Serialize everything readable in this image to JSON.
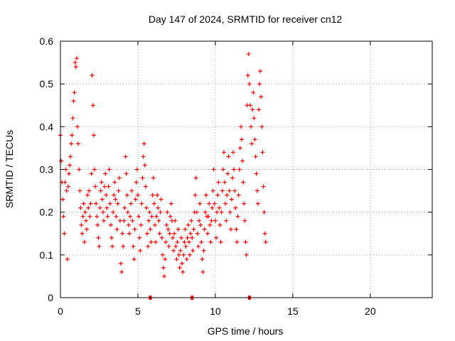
{
  "chart_data": {
    "type": "scatter",
    "title": "Day 147 of 2024, SRMTID for receiver cn12",
    "xlabel": "GPS time / hours",
    "ylabel": "SRMTID / TECUs",
    "xlim": [
      0,
      24
    ],
    "ylim": [
      0,
      0.6
    ],
    "xticks": [
      0,
      5,
      10,
      15,
      20
    ],
    "yticks": [
      0,
      0.1,
      0.2,
      0.3,
      0.4,
      0.5,
      0.6
    ],
    "ytick_labels": [
      "0",
      "0.1",
      "0.2",
      "0.3",
      "0.4",
      "0.5",
      "0.6"
    ],
    "grid": true,
    "marker": "+",
    "color": "#ff0000",
    "zero_markers_x": [
      5.8,
      8.5,
      12.2
    ],
    "series": [
      {
        "values_xy": [
          [
            0.0,
            0.38
          ],
          [
            0.05,
            0.32
          ],
          [
            0.1,
            0.27
          ],
          [
            0.15,
            0.23
          ],
          [
            0.2,
            0.19
          ],
          [
            0.25,
            0.15
          ],
          [
            0.3,
            0.27
          ],
          [
            0.35,
            0.3
          ],
          [
            0.4,
            0.25
          ],
          [
            0.45,
            0.09
          ],
          [
            0.5,
            0.26
          ],
          [
            0.55,
            0.29
          ],
          [
            0.6,
            0.31
          ],
          [
            0.65,
            0.33
          ],
          [
            0.7,
            0.36
          ],
          [
            0.75,
            0.38
          ],
          [
            0.8,
            0.42
          ],
          [
            0.85,
            0.46
          ],
          [
            0.9,
            0.48
          ],
          [
            0.95,
            0.55
          ],
          [
            1.0,
            0.54
          ],
          [
            1.05,
            0.56
          ],
          [
            1.1,
            0.4
          ],
          [
            1.15,
            0.36
          ],
          [
            1.2,
            0.3
          ],
          [
            1.25,
            0.25
          ],
          [
            1.3,
            0.21
          ],
          [
            1.35,
            0.17
          ],
          [
            1.4,
            0.15
          ],
          [
            1.45,
            0.19
          ],
          [
            1.5,
            0.22
          ],
          [
            1.55,
            0.13
          ],
          [
            1.6,
            0.2
          ],
          [
            1.65,
            0.18
          ],
          [
            1.7,
            0.16
          ],
          [
            1.75,
            0.24
          ],
          [
            1.8,
            0.21
          ],
          [
            1.85,
            0.25
          ],
          [
            1.9,
            0.19
          ],
          [
            1.95,
            0.22
          ],
          [
            2.0,
            0.29
          ],
          [
            2.05,
            0.52
          ],
          [
            2.1,
            0.45
          ],
          [
            2.15,
            0.38
          ],
          [
            2.2,
            0.3
          ],
          [
            2.25,
            0.26
          ],
          [
            2.3,
            0.22
          ],
          [
            2.35,
            0.19
          ],
          [
            2.4,
            0.17
          ],
          [
            2.45,
            0.14
          ],
          [
            2.5,
            0.12
          ],
          [
            2.55,
            0.21
          ],
          [
            2.6,
            0.25
          ],
          [
            2.65,
            0.27
          ],
          [
            2.7,
            0.23
          ],
          [
            2.75,
            0.2
          ],
          [
            2.8,
            0.18
          ],
          [
            2.85,
            0.26
          ],
          [
            2.9,
            0.29
          ],
          [
            2.95,
            0.24
          ],
          [
            3.0,
            0.21
          ],
          [
            3.05,
            0.19
          ],
          [
            3.1,
            0.26
          ],
          [
            3.15,
            0.3
          ],
          [
            3.2,
            0.22
          ],
          [
            3.25,
            0.17
          ],
          [
            3.3,
            0.14
          ],
          [
            3.35,
            0.12
          ],
          [
            3.4,
            0.2
          ],
          [
            3.45,
            0.24
          ],
          [
            3.5,
            0.27
          ],
          [
            3.55,
            0.23
          ],
          [
            3.6,
            0.19
          ],
          [
            3.65,
            0.16
          ],
          [
            3.7,
            0.22
          ],
          [
            3.75,
            0.25
          ],
          [
            3.8,
            0.28
          ],
          [
            3.85,
            0.18
          ],
          [
            3.9,
            0.08
          ],
          [
            3.95,
            0.06
          ],
          [
            4.0,
            0.15
          ],
          [
            4.05,
            0.12
          ],
          [
            4.1,
            0.18
          ],
          [
            4.15,
            0.21
          ],
          [
            4.2,
            0.33
          ],
          [
            4.25,
            0.29
          ],
          [
            4.3,
            0.24
          ],
          [
            4.35,
            0.2
          ],
          [
            4.4,
            0.17
          ],
          [
            4.45,
            0.15
          ],
          [
            4.5,
            0.19
          ],
          [
            4.55,
            0.22
          ],
          [
            4.6,
            0.25
          ],
          [
            4.65,
            0.18
          ],
          [
            4.7,
            0.12
          ],
          [
            4.75,
            0.09
          ],
          [
            4.8,
            0.16
          ],
          [
            4.85,
            0.23
          ],
          [
            4.9,
            0.27
          ],
          [
            4.95,
            0.3
          ],
          [
            5.0,
            0.24
          ],
          [
            5.05,
            0.19
          ],
          [
            5.1,
            0.14
          ],
          [
            5.15,
            0.11
          ],
          [
            5.2,
            0.17
          ],
          [
            5.25,
            0.22
          ],
          [
            5.3,
            0.28
          ],
          [
            5.35,
            0.33
          ],
          [
            5.4,
            0.36
          ],
          [
            5.45,
            0.31
          ],
          [
            5.5,
            0.26
          ],
          [
            5.55,
            0.21
          ],
          [
            5.6,
            0.15
          ],
          [
            5.65,
            0.12
          ],
          [
            5.7,
            0.18
          ],
          [
            5.75,
            0.2
          ],
          [
            5.8,
            0.16
          ],
          [
            5.85,
            0.13
          ],
          [
            5.9,
            0.19
          ],
          [
            5.95,
            0.24
          ],
          [
            6.0,
            0.28
          ],
          [
            6.05,
            0.22
          ],
          [
            6.1,
            0.17
          ],
          [
            6.15,
            0.13
          ],
          [
            6.2,
            0.19
          ],
          [
            6.25,
            0.24
          ],
          [
            6.3,
            0.21
          ],
          [
            6.35,
            0.18
          ],
          [
            6.4,
            0.15
          ],
          [
            6.45,
            0.2
          ],
          [
            6.5,
            0.23
          ],
          [
            6.55,
            0.14
          ],
          [
            6.6,
            0.1
          ],
          [
            6.65,
            0.07
          ],
          [
            6.7,
            0.05
          ],
          [
            6.75,
            0.09
          ],
          [
            6.8,
            0.13
          ],
          [
            6.85,
            0.17
          ],
          [
            6.9,
            0.2
          ],
          [
            6.95,
            0.16
          ],
          [
            7.0,
            0.12
          ],
          [
            7.05,
            0.15
          ],
          [
            7.1,
            0.19
          ],
          [
            7.15,
            0.22
          ],
          [
            7.2,
            0.18
          ],
          [
            7.25,
            0.14
          ],
          [
            7.3,
            0.11
          ],
          [
            7.35,
            0.15
          ],
          [
            7.4,
            0.18
          ],
          [
            7.45,
            0.12
          ],
          [
            7.5,
            0.09
          ],
          [
            7.55,
            0.13
          ],
          [
            7.6,
            0.16
          ],
          [
            7.65,
            0.1
          ],
          [
            7.7,
            0.07
          ],
          [
            7.75,
            0.11
          ],
          [
            7.8,
            0.14
          ],
          [
            7.85,
            0.08
          ],
          [
            7.9,
            0.06
          ],
          [
            7.95,
            0.1
          ],
          [
            8.0,
            0.13
          ],
          [
            8.05,
            0.16
          ],
          [
            8.1,
            0.12
          ],
          [
            8.15,
            0.09
          ],
          [
            8.2,
            0.14
          ],
          [
            8.25,
            0.17
          ],
          [
            8.3,
            0.13
          ],
          [
            8.35,
            0.1
          ],
          [
            8.4,
            0.15
          ],
          [
            8.45,
            0.18
          ],
          [
            8.5,
            0.14
          ],
          [
            8.55,
            0.11
          ],
          [
            8.6,
            0.16
          ],
          [
            8.65,
            0.2
          ],
          [
            8.7,
            0.24
          ],
          [
            8.75,
            0.28
          ],
          [
            8.8,
            0.2
          ],
          [
            8.85,
            0.15
          ],
          [
            8.9,
            0.12
          ],
          [
            8.95,
            0.18
          ],
          [
            9.0,
            0.22
          ],
          [
            9.05,
            0.17
          ],
          [
            9.1,
            0.13
          ],
          [
            9.15,
            0.09
          ],
          [
            9.2,
            0.06
          ],
          [
            9.25,
            0.11
          ],
          [
            9.3,
            0.16
          ],
          [
            9.35,
            0.2
          ],
          [
            9.4,
            0.24
          ],
          [
            9.45,
            0.19
          ],
          [
            9.5,
            0.15
          ],
          [
            9.55,
            0.19
          ],
          [
            9.6,
            0.22
          ],
          [
            9.65,
            0.17
          ],
          [
            9.7,
            0.13
          ],
          [
            9.75,
            0.18
          ],
          [
            9.8,
            0.21
          ],
          [
            9.85,
            0.25
          ],
          [
            9.9,
            0.3
          ],
          [
            9.95,
            0.22
          ],
          [
            10.0,
            0.18
          ],
          [
            10.05,
            0.14
          ],
          [
            10.1,
            0.2
          ],
          [
            10.15,
            0.24
          ],
          [
            10.2,
            0.27
          ],
          [
            10.25,
            0.21
          ],
          [
            10.3,
            0.17
          ],
          [
            10.35,
            0.13
          ],
          [
            10.4,
            0.2
          ],
          [
            10.45,
            0.25
          ],
          [
            10.5,
            0.3
          ],
          [
            10.55,
            0.34
          ],
          [
            10.6,
            0.27
          ],
          [
            10.65,
            0.22
          ],
          [
            10.7,
            0.18
          ],
          [
            10.75,
            0.24
          ],
          [
            10.8,
            0.29
          ],
          [
            10.85,
            0.33
          ],
          [
            10.9,
            0.25
          ],
          [
            10.95,
            0.2
          ],
          [
            11.0,
            0.16
          ],
          [
            11.05,
            0.23
          ],
          [
            11.1,
            0.28
          ],
          [
            11.15,
            0.34
          ],
          [
            11.2,
            0.3
          ],
          [
            11.25,
            0.25
          ],
          [
            11.3,
            0.21
          ],
          [
            11.35,
            0.16
          ],
          [
            11.4,
            0.13
          ],
          [
            11.45,
            0.19
          ],
          [
            11.5,
            0.24
          ],
          [
            11.55,
            0.3
          ],
          [
            11.6,
            0.35
          ],
          [
            11.65,
            0.4
          ],
          [
            11.7,
            0.37
          ],
          [
            11.75,
            0.32
          ],
          [
            11.8,
            0.27
          ],
          [
            11.85,
            0.22
          ],
          [
            11.9,
            0.18
          ],
          [
            11.95,
            0.13
          ],
          [
            12.0,
            0.1
          ],
          [
            12.05,
            0.45
          ],
          [
            12.1,
            0.52
          ],
          [
            12.15,
            0.57
          ],
          [
            12.2,
            0.5
          ],
          [
            12.25,
            0.45
          ],
          [
            12.3,
            0.4
          ],
          [
            12.35,
            0.36
          ],
          [
            12.4,
            0.44
          ],
          [
            12.45,
            0.48
          ],
          [
            12.5,
            0.42
          ],
          [
            12.55,
            0.37
          ],
          [
            12.6,
            0.33
          ],
          [
            12.65,
            0.29
          ],
          [
            12.7,
            0.25
          ],
          [
            12.75,
            0.22
          ],
          [
            12.8,
            0.44
          ],
          [
            12.85,
            0.5
          ],
          [
            12.9,
            0.53
          ],
          [
            12.95,
            0.47
          ],
          [
            13.0,
            0.4
          ],
          [
            13.05,
            0.34
          ],
          [
            13.1,
            0.26
          ],
          [
            13.15,
            0.2
          ],
          [
            13.2,
            0.15
          ],
          [
            13.25,
            0.13
          ]
        ]
      }
    ]
  }
}
